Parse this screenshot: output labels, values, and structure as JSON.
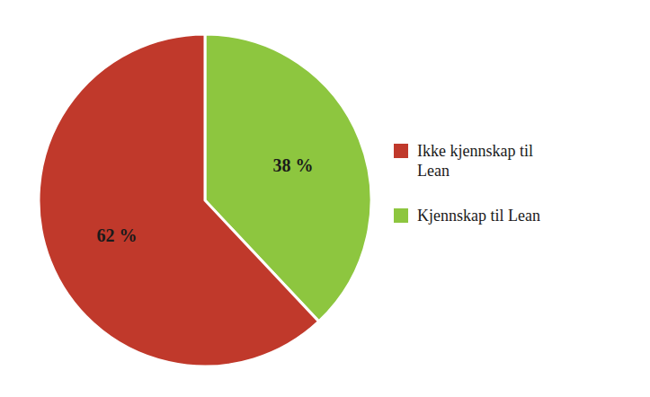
{
  "chart_data": {
    "type": "pie",
    "categories": [
      "Kjennskap til Lean",
      "Ikke kjennskap til\nLean"
    ],
    "values": [
      38,
      62
    ],
    "value_labels": [
      "38 %",
      "62 %"
    ],
    "colors": [
      "#8DC63F",
      "#C0392B"
    ],
    "data_labels": true,
    "legend": "right"
  }
}
